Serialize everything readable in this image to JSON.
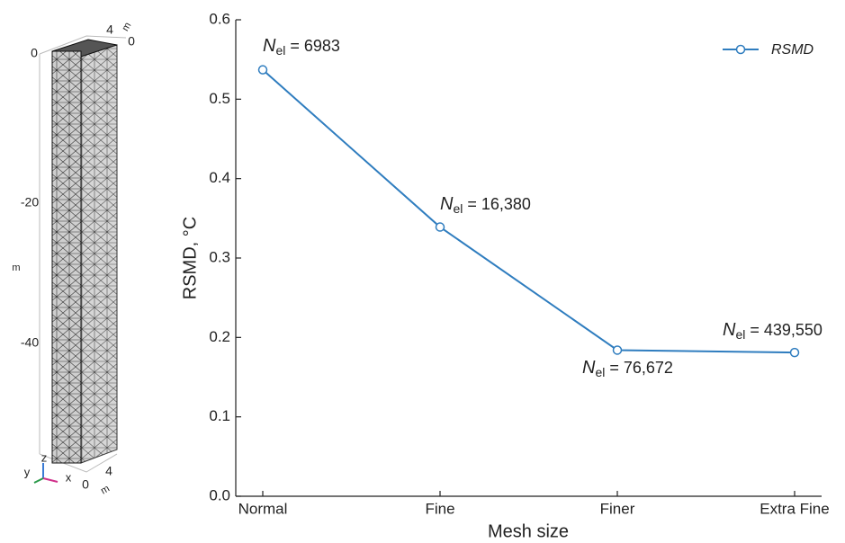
{
  "chart_data": {
    "type": "line",
    "xlabel": "Mesh size",
    "ylabel": "RSMD, °C",
    "categories": [
      "Normal",
      "Fine",
      "Finer",
      "Extra Fine"
    ],
    "series": [
      {
        "name": "RSMD",
        "color": "#2f7dbf",
        "values": [
          0.537,
          0.339,
          0.184,
          0.181
        ]
      }
    ],
    "ylim": [
      0,
      0.6
    ],
    "yticks": [
      {
        "value": 0,
        "label": "0.0"
      },
      0.1,
      0.2,
      0.3,
      0.4,
      0.5,
      0.6
    ],
    "grid": false,
    "legend": "upper right",
    "annotations": [
      {
        "symbol": "N",
        "subscript": "el",
        "text": "= 6983"
      },
      {
        "symbol": "N",
        "subscript": "el",
        "text": "= 16,380"
      },
      {
        "symbol": "N",
        "subscript": "el",
        "text": "= 76,672"
      },
      {
        "symbol": "N",
        "subscript": "el",
        "text": "= 439,550"
      }
    ]
  },
  "mesh_figure": {
    "labels": [
      "0",
      "4",
      "m",
      "0",
      "-20",
      "m",
      "-40",
      "0",
      "4",
      "m"
    ],
    "triad": [
      "z",
      "y",
      "x"
    ]
  }
}
